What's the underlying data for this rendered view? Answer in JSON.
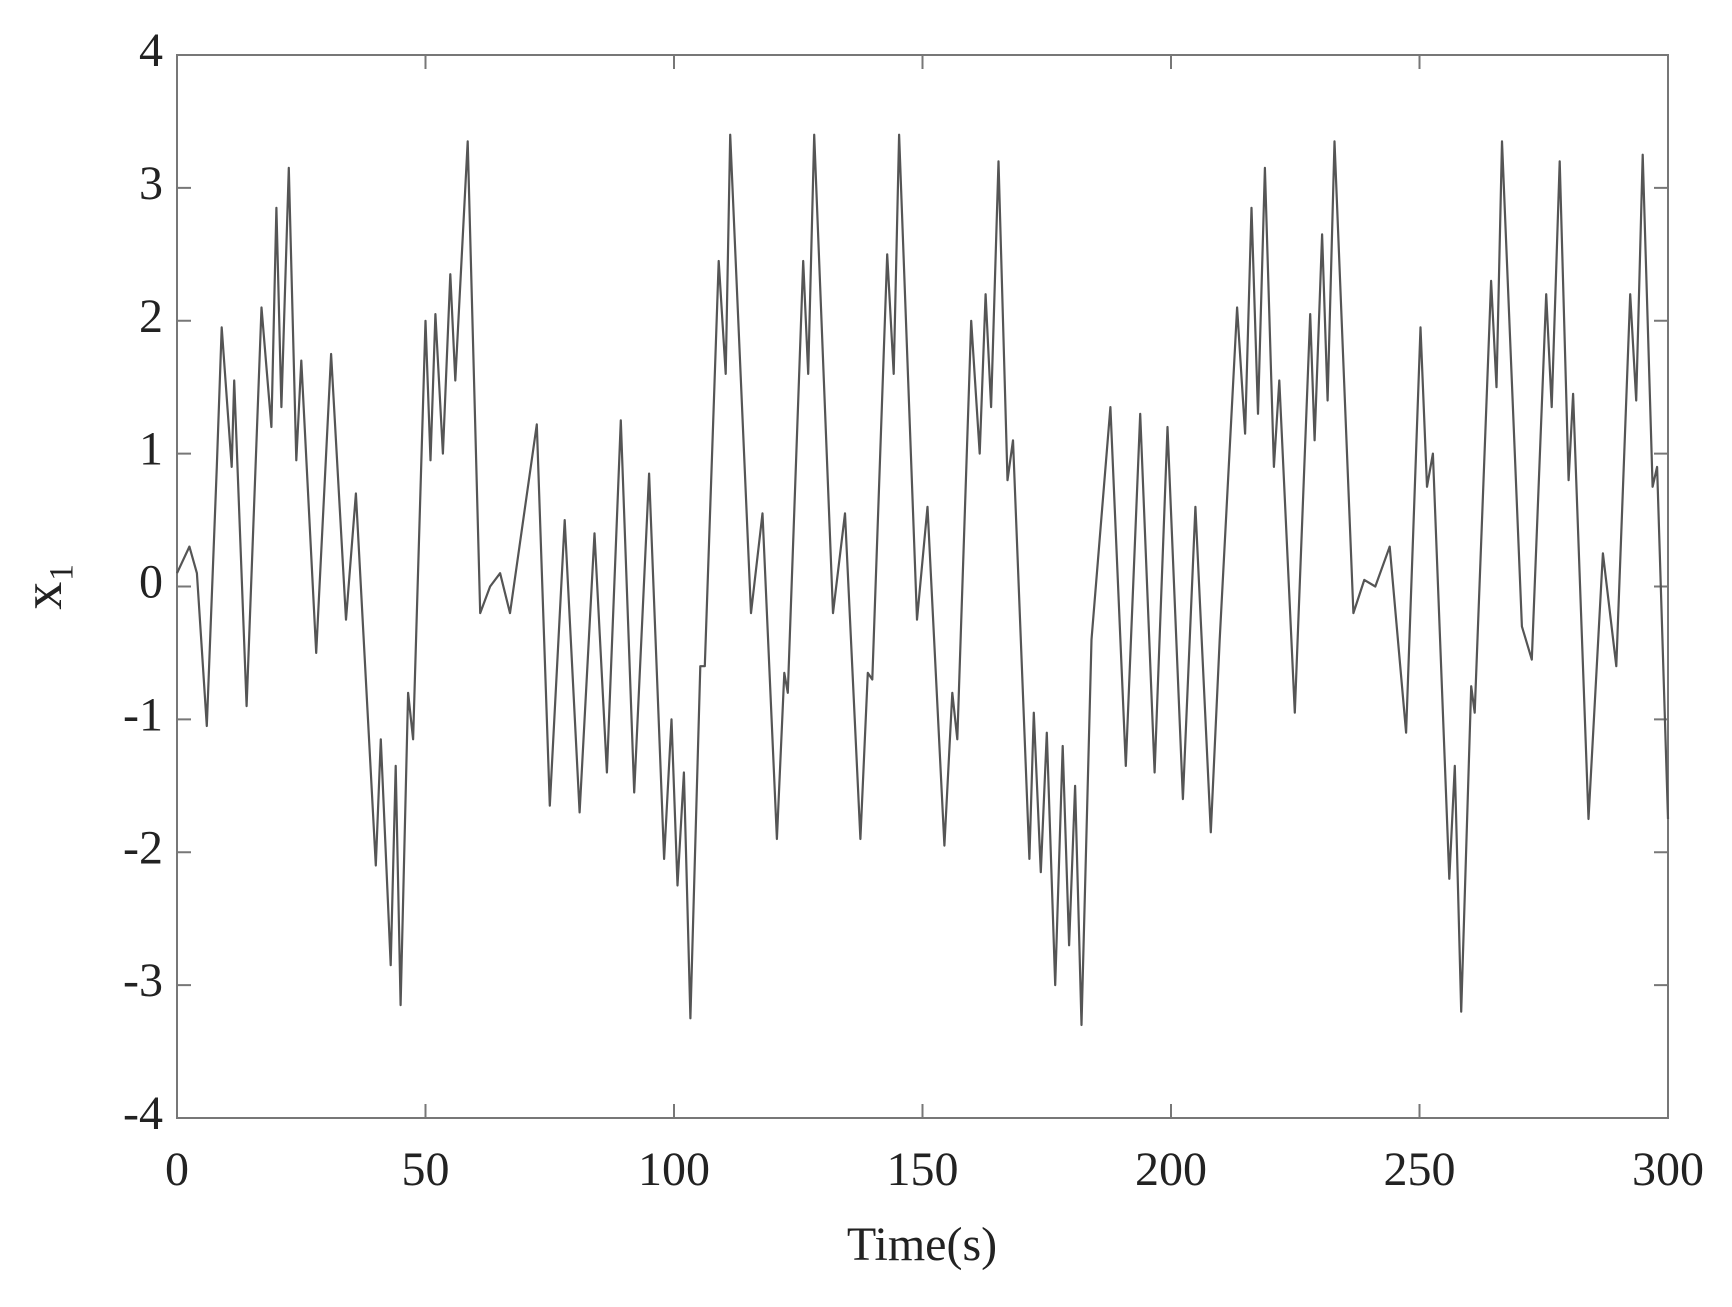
{
  "chart_data": {
    "type": "line",
    "x_label": "Time(s)",
    "y_label": "x₁",
    "x": [
      0,
      2.5,
      4,
      6,
      8,
      9,
      11,
      11.5,
      14,
      17,
      19,
      20,
      21,
      22.5,
      24,
      25,
      28,
      31,
      34,
      36,
      40,
      41,
      43,
      44,
      45,
      46.5,
      47.5,
      50,
      51,
      52,
      53.5,
      55,
      56,
      58.5,
      61,
      63,
      65,
      67,
      72.4,
      75,
      78,
      81,
      84,
      86.5,
      89.3,
      92,
      95,
      98,
      99.5,
      100.7,
      102,
      103.3,
      105.3,
      106.2,
      109,
      110.4,
      111.3,
      115.5,
      117.8,
      120.7,
      122.2,
      122.9,
      126,
      127,
      128.2,
      132,
      134.4,
      137.5,
      139,
      139.9,
      142.9,
      144.2,
      145.3,
      148.9,
      151,
      154.4,
      156,
      157,
      159.8,
      161.5,
      162.7,
      163.8,
      165.3,
      167.1,
      168.2,
      171.5,
      172.4,
      173.8,
      175,
      176.7,
      178.2,
      179.5,
      180.7,
      182,
      184,
      187.8,
      190.9,
      193.8,
      196.7,
      199.3,
      202.4,
      204.9,
      208,
      209.8,
      213.3,
      214.9,
      216.2,
      217.5,
      218.9,
      220.7,
      221.8,
      224.9,
      228,
      228.9,
      230.4,
      231.5,
      232.9,
      236.7,
      238.9,
      241.1,
      244,
      247.3,
      250.2,
      251.5,
      252.7,
      256,
      257.1,
      258.4,
      260.4,
      261.1,
      264.4,
      265.5,
      266.6,
      270.6,
      272.6,
      275.5,
      276.6,
      278.2,
      280,
      280.9,
      284,
      286.9,
      289.6,
      292.4,
      293.6,
      294.9,
      296.9,
      297.8,
      300
    ],
    "series": [
      {
        "color": "#555555",
        "values": [
          0.1,
          0.3,
          0.1,
          -1.05,
          0.9,
          1.95,
          0.9,
          1.55,
          -0.9,
          2.1,
          1.2,
          2.85,
          1.35,
          3.15,
          0.95,
          1.7,
          -0.5,
          1.75,
          -0.25,
          0.7,
          -2.1,
          -1.15,
          -2.85,
          -1.35,
          -3.15,
          -0.8,
          -1.15,
          2.0,
          0.95,
          2.05,
          1.0,
          2.35,
          1.55,
          3.35,
          -0.2,
          0.0,
          0.1,
          -0.2,
          1.22,
          -1.65,
          0.5,
          -1.7,
          0.4,
          -1.4,
          1.25,
          -1.55,
          0.85,
          -2.05,
          -1.0,
          -2.25,
          -1.4,
          -3.25,
          -0.6,
          -0.6,
          2.45,
          1.6,
          3.4,
          -0.2,
          0.55,
          -1.9,
          -0.65,
          -0.8,
          2.45,
          1.6,
          3.4,
          -0.2,
          0.55,
          -1.9,
          -0.65,
          -0.7,
          2.5,
          1.6,
          3.4,
          -0.25,
          0.6,
          -1.95,
          -0.8,
          -1.15,
          2.0,
          1.0,
          2.2,
          1.35,
          3.2,
          0.8,
          1.1,
          -2.05,
          -0.95,
          -2.15,
          -1.1,
          -3.0,
          -1.2,
          -2.7,
          -1.5,
          -3.3,
          -0.4,
          1.35,
          -1.35,
          1.3,
          -1.4,
          1.2,
          -1.6,
          0.6,
          -1.85,
          -0.4,
          2.1,
          1.15,
          2.85,
          1.3,
          3.15,
          0.9,
          1.55,
          -0.95,
          2.05,
          1.1,
          2.65,
          1.4,
          3.35,
          -0.2,
          0.05,
          0.0,
          0.3,
          -1.1,
          1.95,
          0.75,
          1.0,
          -2.2,
          -1.35,
          -3.2,
          -0.75,
          -0.95,
          2.3,
          1.5,
          3.35,
          -0.3,
          -0.55,
          2.2,
          1.35,
          3.2,
          0.8,
          1.45,
          -1.75,
          0.25,
          -0.6,
          2.2,
          1.4,
          3.25,
          0.75,
          0.9,
          -1.75
        ]
      }
    ],
    "xlim": [
      0,
      300
    ],
    "xticks": [
      0,
      50,
      100,
      150,
      200,
      250,
      300
    ],
    "ylim": [
      -4,
      4
    ],
    "yticks": [
      -4,
      -3,
      -2,
      -1,
      0,
      1,
      2,
      3,
      4
    ],
    "grid": false
  }
}
